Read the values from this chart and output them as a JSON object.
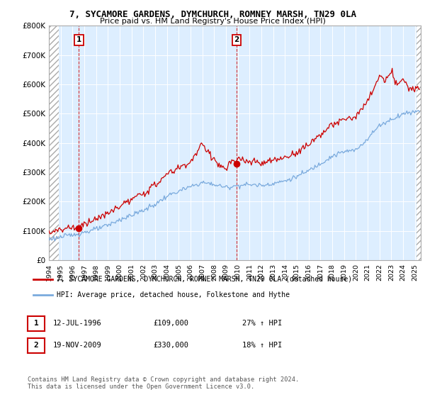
{
  "title1": "7, SYCAMORE GARDENS, DYMCHURCH, ROMNEY MARSH, TN29 0LA",
  "title2": "Price paid vs. HM Land Registry's House Price Index (HPI)",
  "hpi_color": "#7aaadd",
  "price_color": "#cc0000",
  "bg_color": "#ddeeff",
  "transactions": [
    {
      "date": 1996.54,
      "price": 109000,
      "label": "1"
    },
    {
      "date": 2009.89,
      "price": 330000,
      "label": "2"
    }
  ],
  "legend_line1": "7, SYCAMORE GARDENS, DYMCHURCH, ROMNEY MARSH, TN29 0LA (detached house)",
  "legend_line2": "HPI: Average price, detached house, Folkestone and Hythe",
  "table_rows": [
    {
      "num": "1",
      "date": "12-JUL-1996",
      "price": "£109,000",
      "info": "27% ↑ HPI"
    },
    {
      "num": "2",
      "date": "19-NOV-2009",
      "price": "£330,000",
      "info": "18% ↑ HPI"
    }
  ],
  "footer": "Contains HM Land Registry data © Crown copyright and database right 2024.\nThis data is licensed under the Open Government Licence v3.0.",
  "xmin": 1994.0,
  "xmax": 2025.5,
  "ymin": 0,
  "ymax": 800000,
  "yticks": [
    0,
    100000,
    200000,
    300000,
    400000,
    500000,
    600000,
    700000,
    800000
  ],
  "ytick_labels": [
    "£0",
    "£100K",
    "£200K",
    "£300K",
    "£400K",
    "£500K",
    "£600K",
    "£700K",
    "£800K"
  ],
  "hpi_knots": [
    1994,
    1995,
    1996,
    1997,
    1998,
    1999,
    2000,
    2001,
    2002,
    2003,
    2004,
    2005,
    2006,
    2007,
    2008,
    2009,
    2010,
    2011,
    2012,
    2013,
    2014,
    2015,
    2016,
    2017,
    2018,
    2019,
    2020,
    2021,
    2022,
    2023,
    2024,
    2025.4
  ],
  "hpi_vals": [
    72000,
    78000,
    86000,
    95000,
    105000,
    118000,
    138000,
    153000,
    170000,
    190000,
    218000,
    235000,
    250000,
    265000,
    258000,
    248000,
    255000,
    258000,
    255000,
    262000,
    270000,
    285000,
    305000,
    330000,
    355000,
    370000,
    375000,
    415000,
    460000,
    480000,
    500000,
    510000
  ],
  "price_knots": [
    1994,
    1995,
    1996,
    1996.54,
    1997,
    1998,
    1999,
    2000,
    2001,
    2002,
    2003,
    2004,
    2005,
    2006,
    2007,
    2007.5,
    2008,
    2008.5,
    2009,
    2009.5,
    2009.89,
    2010,
    2011,
    2012,
    2013,
    2014,
    2015,
    2016,
    2017,
    2018,
    2019,
    2020,
    2021,
    2022,
    2022.5,
    2023,
    2023.5,
    2024,
    2024.5,
    2025.4
  ],
  "price_vals": [
    96000,
    104000,
    114000,
    109000,
    127000,
    140000,
    158000,
    185000,
    205000,
    228000,
    255000,
    293000,
    315000,
    335000,
    395000,
    370000,
    345000,
    320000,
    310000,
    340000,
    330000,
    345000,
    335000,
    330000,
    340000,
    350000,
    368000,
    395000,
    430000,
    460000,
    480000,
    490000,
    540000,
    630000,
    610000,
    640000,
    600000,
    620000,
    580000,
    590000
  ]
}
